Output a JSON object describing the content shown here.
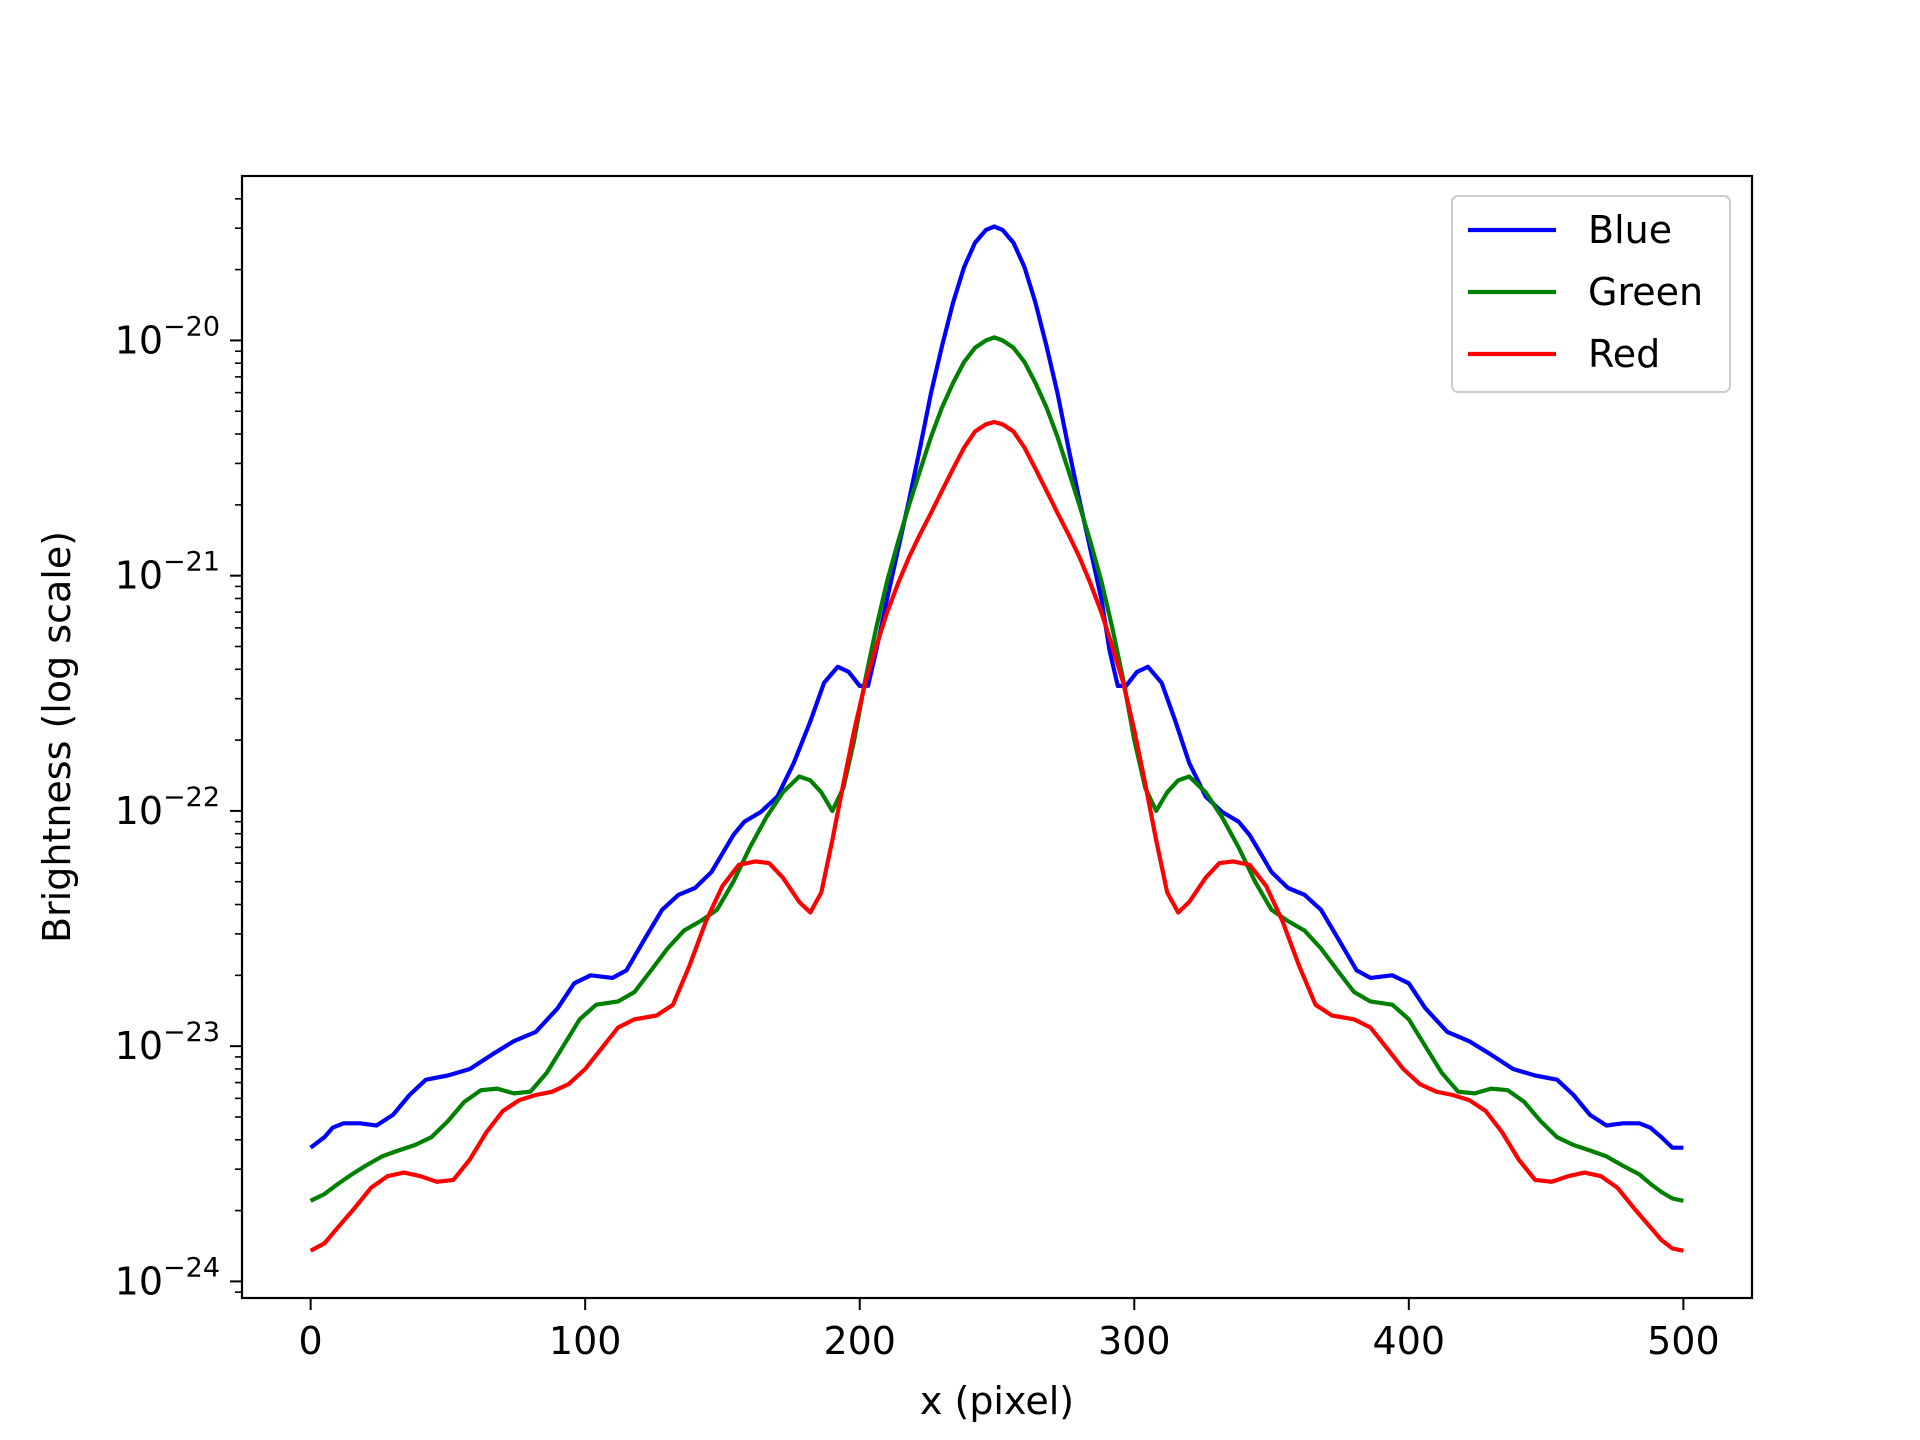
{
  "chart_data": {
    "type": "line",
    "xlabel": "x (pixel)",
    "ylabel": "Brightness (log scale)",
    "yscale": "log",
    "xlim": [
      -25,
      525
    ],
    "ylim": [
      8.5e-25,
      5e-20
    ],
    "xticks": [
      {
        "value": 0,
        "label": "0"
      },
      {
        "value": 100,
        "label": "100"
      },
      {
        "value": 200,
        "label": "200"
      },
      {
        "value": 300,
        "label": "300"
      },
      {
        "value": 400,
        "label": "400"
      },
      {
        "value": 500,
        "label": "500"
      }
    ],
    "yticks": [
      {
        "value": 1e-20,
        "exp": -20,
        "base": "10",
        "mant": "−20"
      },
      {
        "value": 1e-21,
        "exp": -21,
        "base": "10",
        "mant": "−21"
      },
      {
        "value": 1e-22,
        "exp": -22,
        "base": "10",
        "mant": "−22"
      },
      {
        "value": 1e-23,
        "exp": -23,
        "base": "10",
        "mant": "−23"
      },
      {
        "value": 1e-24,
        "exp": -24,
        "base": "10",
        "mant": "−24"
      }
    ],
    "grid": false,
    "legend": "top-right",
    "series": [
      {
        "name": "Blue",
        "color": "#0000ff",
        "points": [
          [
            0,
            3.7e-24
          ],
          [
            5,
            4.1e-24
          ],
          [
            8,
            4.5e-24
          ],
          [
            12,
            4.7e-24
          ],
          [
            18,
            4.7e-24
          ],
          [
            24,
            4.6e-24
          ],
          [
            30,
            5.1e-24
          ],
          [
            36,
            6.2e-24
          ],
          [
            42,
            7.2e-24
          ],
          [
            50,
            7.5e-24
          ],
          [
            58,
            8e-24
          ],
          [
            66,
            9.2e-24
          ],
          [
            74,
            1.05e-23
          ],
          [
            82,
            1.15e-23
          ],
          [
            90,
            1.45e-23
          ],
          [
            96,
            1.85e-23
          ],
          [
            102,
            2e-23
          ],
          [
            110,
            1.95e-23
          ],
          [
            115,
            2.1e-23
          ],
          [
            122,
            2.9e-23
          ],
          [
            128,
            3.8e-23
          ],
          [
            134,
            4.4e-23
          ],
          [
            140,
            4.7e-23
          ],
          [
            146,
            5.5e-23
          ],
          [
            150,
            6.6e-23
          ],
          [
            154,
            7.9e-23
          ],
          [
            158,
            9e-23
          ],
          [
            164,
            9.9e-23
          ],
          [
            170,
            1.15e-22
          ],
          [
            176,
            1.6e-22
          ],
          [
            182,
            2.4e-22
          ],
          [
            187,
            3.5e-22
          ],
          [
            192,
            4.1e-22
          ],
          [
            196,
            3.9e-22
          ],
          [
            200,
            3.4e-22
          ],
          [
            203,
            3.4e-22
          ],
          [
            206,
            4.8e-22
          ],
          [
            210,
            8e-22
          ],
          [
            214,
            1.3e-21
          ],
          [
            218,
            2.1e-21
          ],
          [
            222,
            3.5e-21
          ],
          [
            226,
            6e-21
          ],
          [
            230,
            9.5e-21
          ],
          [
            234,
            1.45e-20
          ],
          [
            238,
            2.05e-20
          ],
          [
            242,
            2.6e-20
          ],
          [
            246,
            2.95e-20
          ],
          [
            249,
            3.05e-20
          ],
          [
            252,
            2.95e-20
          ],
          [
            256,
            2.6e-20
          ],
          [
            260,
            2.05e-20
          ],
          [
            264,
            1.45e-20
          ],
          [
            268,
            9.5e-21
          ],
          [
            272,
            6e-21
          ],
          [
            276,
            3.5e-21
          ],
          [
            280,
            2.1e-21
          ],
          [
            284,
            1.3e-21
          ],
          [
            288,
            8e-22
          ],
          [
            291,
            4.8e-22
          ],
          [
            294,
            3.4e-22
          ],
          [
            297,
            3.4e-22
          ],
          [
            301,
            3.9e-22
          ],
          [
            305,
            4.1e-22
          ],
          [
            310,
            3.5e-22
          ],
          [
            315,
            2.4e-22
          ],
          [
            320,
            1.6e-22
          ],
          [
            326,
            1.15e-22
          ],
          [
            332,
            9.9e-23
          ],
          [
            338,
            9e-23
          ],
          [
            342,
            7.9e-23
          ],
          [
            346,
            6.6e-23
          ],
          [
            350,
            5.5e-23
          ],
          [
            356,
            4.7e-23
          ],
          [
            362,
            4.4e-23
          ],
          [
            368,
            3.8e-23
          ],
          [
            374,
            2.9e-23
          ],
          [
            381,
            2.1e-23
          ],
          [
            386,
            1.95e-23
          ],
          [
            394,
            2e-23
          ],
          [
            400,
            1.85e-23
          ],
          [
            406,
            1.45e-23
          ],
          [
            414,
            1.15e-23
          ],
          [
            422,
            1.05e-23
          ],
          [
            430,
            9.2e-24
          ],
          [
            438,
            8e-24
          ],
          [
            446,
            7.5e-24
          ],
          [
            454,
            7.2e-24
          ],
          [
            460,
            6.2e-24
          ],
          [
            466,
            5.1e-24
          ],
          [
            472,
            4.6e-24
          ],
          [
            478,
            4.7e-24
          ],
          [
            484,
            4.7e-24
          ],
          [
            488,
            4.5e-24
          ],
          [
            492,
            4.1e-24
          ],
          [
            496,
            3.7e-24
          ],
          [
            500,
            3.7e-24
          ]
        ]
      },
      {
        "name": "Green",
        "color": "#008000",
        "points": [
          [
            0,
            2.2e-24
          ],
          [
            5,
            2.35e-24
          ],
          [
            10,
            2.6e-24
          ],
          [
            15,
            2.85e-24
          ],
          [
            20,
            3.1e-24
          ],
          [
            26,
            3.4e-24
          ],
          [
            32,
            3.6e-24
          ],
          [
            38,
            3.8e-24
          ],
          [
            44,
            4.1e-24
          ],
          [
            50,
            4.8e-24
          ],
          [
            56,
            5.8e-24
          ],
          [
            62,
            6.5e-24
          ],
          [
            68,
            6.6e-24
          ],
          [
            74,
            6.3e-24
          ],
          [
            80,
            6.4e-24
          ],
          [
            86,
            7.7e-24
          ],
          [
            92,
            1e-23
          ],
          [
            98,
            1.3e-23
          ],
          [
            104,
            1.5e-23
          ],
          [
            112,
            1.55e-23
          ],
          [
            118,
            1.7e-23
          ],
          [
            124,
            2.1e-23
          ],
          [
            130,
            2.6e-23
          ],
          [
            136,
            3.1e-23
          ],
          [
            142,
            3.4e-23
          ],
          [
            148,
            3.8e-23
          ],
          [
            154,
            5e-23
          ],
          [
            160,
            7e-23
          ],
          [
            166,
            9.4e-23
          ],
          [
            172,
            1.2e-22
          ],
          [
            178,
            1.4e-22
          ],
          [
            182,
            1.35e-22
          ],
          [
            186,
            1.2e-22
          ],
          [
            190,
            1e-22
          ],
          [
            194,
            1.25e-22
          ],
          [
            198,
            2e-22
          ],
          [
            202,
            3.6e-22
          ],
          [
            206,
            6e-22
          ],
          [
            210,
            9.5e-22
          ],
          [
            214,
            1.4e-21
          ],
          [
            218,
            2e-21
          ],
          [
            222,
            2.8e-21
          ],
          [
            226,
            3.9e-21
          ],
          [
            230,
            5.2e-21
          ],
          [
            234,
            6.6e-21
          ],
          [
            238,
            8.1e-21
          ],
          [
            242,
            9.3e-21
          ],
          [
            246,
            1e-20
          ],
          [
            249,
            1.03e-20
          ],
          [
            252,
            1e-20
          ],
          [
            256,
            9.3e-21
          ],
          [
            260,
            8.1e-21
          ],
          [
            264,
            6.6e-21
          ],
          [
            268,
            5.2e-21
          ],
          [
            272,
            3.9e-21
          ],
          [
            276,
            2.8e-21
          ],
          [
            280,
            2e-21
          ],
          [
            284,
            1.4e-21
          ],
          [
            288,
            9.5e-22
          ],
          [
            292,
            6e-22
          ],
          [
            296,
            3.6e-22
          ],
          [
            300,
            2e-22
          ],
          [
            304,
            1.25e-22
          ],
          [
            308,
            1e-22
          ],
          [
            312,
            1.2e-22
          ],
          [
            316,
            1.35e-22
          ],
          [
            320,
            1.4e-22
          ],
          [
            326,
            1.2e-22
          ],
          [
            332,
            9.4e-23
          ],
          [
            338,
            7e-23
          ],
          [
            344,
            5e-23
          ],
          [
            350,
            3.8e-23
          ],
          [
            356,
            3.4e-23
          ],
          [
            362,
            3.1e-23
          ],
          [
            368,
            2.6e-23
          ],
          [
            374,
            2.1e-23
          ],
          [
            380,
            1.7e-23
          ],
          [
            386,
            1.55e-23
          ],
          [
            394,
            1.5e-23
          ],
          [
            400,
            1.3e-23
          ],
          [
            406,
            1e-23
          ],
          [
            412,
            7.7e-24
          ],
          [
            418,
            6.4e-24
          ],
          [
            424,
            6.3e-24
          ],
          [
            430,
            6.6e-24
          ],
          [
            436,
            6.5e-24
          ],
          [
            442,
            5.8e-24
          ],
          [
            448,
            4.8e-24
          ],
          [
            454,
            4.1e-24
          ],
          [
            460,
            3.8e-24
          ],
          [
            466,
            3.6e-24
          ],
          [
            472,
            3.4e-24
          ],
          [
            478,
            3.1e-24
          ],
          [
            484,
            2.85e-24
          ],
          [
            488,
            2.6e-24
          ],
          [
            492,
            2.4e-24
          ],
          [
            496,
            2.25e-24
          ],
          [
            500,
            2.2e-24
          ]
        ]
      },
      {
        "name": "Red",
        "color": "#ff0000",
        "points": [
          [
            0,
            1.35e-24
          ],
          [
            5,
            1.45e-24
          ],
          [
            10,
            1.7e-24
          ],
          [
            16,
            2.05e-24
          ],
          [
            22,
            2.5e-24
          ],
          [
            28,
            2.8e-24
          ],
          [
            34,
            2.9e-24
          ],
          [
            40,
            2.8e-24
          ],
          [
            46,
            2.65e-24
          ],
          [
            52,
            2.7e-24
          ],
          [
            58,
            3.3e-24
          ],
          [
            64,
            4.3e-24
          ],
          [
            70,
            5.3e-24
          ],
          [
            76,
            5.9e-24
          ],
          [
            82,
            6.2e-24
          ],
          [
            88,
            6.4e-24
          ],
          [
            94,
            6.9e-24
          ],
          [
            100,
            8e-24
          ],
          [
            106,
            9.8e-24
          ],
          [
            112,
            1.2e-23
          ],
          [
            118,
            1.3e-23
          ],
          [
            126,
            1.35e-23
          ],
          [
            132,
            1.5e-23
          ],
          [
            138,
            2.2e-23
          ],
          [
            144,
            3.4e-23
          ],
          [
            150,
            4.8e-23
          ],
          [
            156,
            5.9e-23
          ],
          [
            162,
            6.1e-23
          ],
          [
            167,
            6e-23
          ],
          [
            172,
            5.2e-23
          ],
          [
            178,
            4.1e-23
          ],
          [
            182,
            3.7e-23
          ],
          [
            186,
            4.5e-23
          ],
          [
            190,
            7.5e-23
          ],
          [
            194,
            1.3e-22
          ],
          [
            198,
            2.2e-22
          ],
          [
            202,
            3.5e-22
          ],
          [
            206,
            5e-22
          ],
          [
            210,
            7e-22
          ],
          [
            214,
            9.3e-22
          ],
          [
            218,
            1.2e-21
          ],
          [
            222,
            1.5e-21
          ],
          [
            226,
            1.85e-21
          ],
          [
            230,
            2.3e-21
          ],
          [
            234,
            2.85e-21
          ],
          [
            238,
            3.5e-21
          ],
          [
            242,
            4.1e-21
          ],
          [
            246,
            4.4e-21
          ],
          [
            249,
            4.5e-21
          ],
          [
            252,
            4.4e-21
          ],
          [
            256,
            4.1e-21
          ],
          [
            260,
            3.5e-21
          ],
          [
            264,
            2.85e-21
          ],
          [
            268,
            2.3e-21
          ],
          [
            272,
            1.85e-21
          ],
          [
            276,
            1.5e-21
          ],
          [
            280,
            1.2e-21
          ],
          [
            284,
            9.3e-22
          ],
          [
            288,
            7e-22
          ],
          [
            292,
            5e-22
          ],
          [
            296,
            3.5e-22
          ],
          [
            300,
            2.2e-22
          ],
          [
            304,
            1.3e-22
          ],
          [
            308,
            7.5e-23
          ],
          [
            312,
            4.5e-23
          ],
          [
            316,
            3.7e-23
          ],
          [
            320,
            4.1e-23
          ],
          [
            326,
            5.2e-23
          ],
          [
            331,
            6e-23
          ],
          [
            336,
            6.1e-23
          ],
          [
            342,
            5.9e-23
          ],
          [
            348,
            4.8e-23
          ],
          [
            354,
            3.4e-23
          ],
          [
            360,
            2.2e-23
          ],
          [
            366,
            1.5e-23
          ],
          [
            372,
            1.35e-23
          ],
          [
            380,
            1.3e-23
          ],
          [
            386,
            1.2e-23
          ],
          [
            392,
            9.8e-24
          ],
          [
            398,
            8e-24
          ],
          [
            404,
            6.9e-24
          ],
          [
            410,
            6.4e-24
          ],
          [
            416,
            6.2e-24
          ],
          [
            422,
            5.9e-24
          ],
          [
            428,
            5.3e-24
          ],
          [
            434,
            4.3e-24
          ],
          [
            440,
            3.3e-24
          ],
          [
            446,
            2.7e-24
          ],
          [
            452,
            2.65e-24
          ],
          [
            458,
            2.8e-24
          ],
          [
            464,
            2.9e-24
          ],
          [
            470,
            2.8e-24
          ],
          [
            476,
            2.5e-24
          ],
          [
            482,
            2.05e-24
          ],
          [
            488,
            1.7e-24
          ],
          [
            492,
            1.5e-24
          ],
          [
            496,
            1.38e-24
          ],
          [
            500,
            1.35e-24
          ]
        ]
      }
    ]
  }
}
